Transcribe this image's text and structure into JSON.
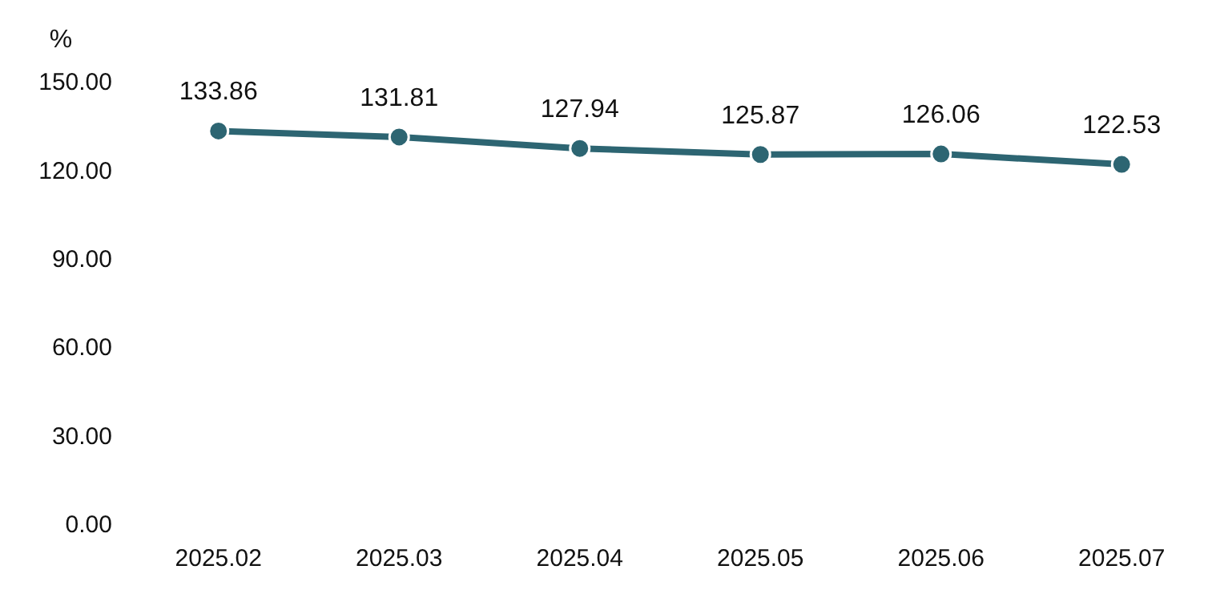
{
  "chart_data": {
    "type": "line",
    "ylabel": "%",
    "categories": [
      "2025.02",
      "2025.03",
      "2025.04",
      "2025.05",
      "2025.06",
      "2025.07"
    ],
    "series": [
      {
        "color": "#2d6572",
        "values": [
          133.86,
          131.81,
          127.94,
          125.87,
          126.06,
          122.53
        ]
      }
    ],
    "ylim": [
      0,
      150
    ],
    "yticks": [
      {
        "value": 0,
        "label": "0.00"
      },
      {
        "value": 30,
        "label": "30.00"
      },
      {
        "value": 60,
        "label": "60.00"
      },
      {
        "value": 90,
        "label": "90.00"
      },
      {
        "value": 120,
        "label": "120.00"
      },
      {
        "value": 150,
        "label": "150.00"
      }
    ],
    "grid": false,
    "legend": false,
    "marker": "circle",
    "line_style": "solid",
    "data_labels": true
  }
}
